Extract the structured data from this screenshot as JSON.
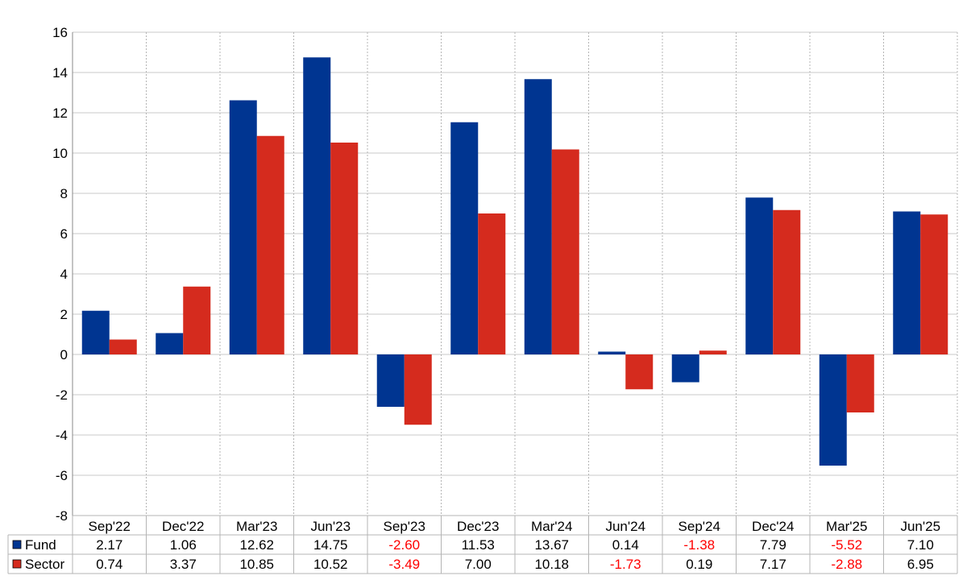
{
  "chart_data": {
    "type": "bar",
    "categories": [
      "Sep'22",
      "Dec'22",
      "Mar'23",
      "Jun'23",
      "Sep'23",
      "Dec'23",
      "Mar'24",
      "Jun'24",
      "Sep'24",
      "Dec'24",
      "Mar'25",
      "Jun'25"
    ],
    "series": [
      {
        "name": "Fund",
        "color": "#003591",
        "values": [
          2.17,
          1.06,
          12.62,
          14.75,
          -2.6,
          11.53,
          13.67,
          0.14,
          -1.38,
          7.79,
          -5.52,
          7.1
        ]
      },
      {
        "name": "Sector",
        "color": "#d52b1e",
        "values": [
          0.74,
          3.37,
          10.85,
          10.52,
          -3.49,
          7.0,
          10.18,
          -1.73,
          0.19,
          7.17,
          -2.88,
          6.95
        ]
      }
    ],
    "ylim": [
      -8,
      16
    ],
    "yticks": [
      -8,
      -6,
      -4,
      -2,
      0,
      2,
      4,
      6,
      8,
      10,
      12,
      14,
      16
    ],
    "negative_value_color": "#ff0000",
    "grid": true,
    "legend": "data-table-below"
  }
}
